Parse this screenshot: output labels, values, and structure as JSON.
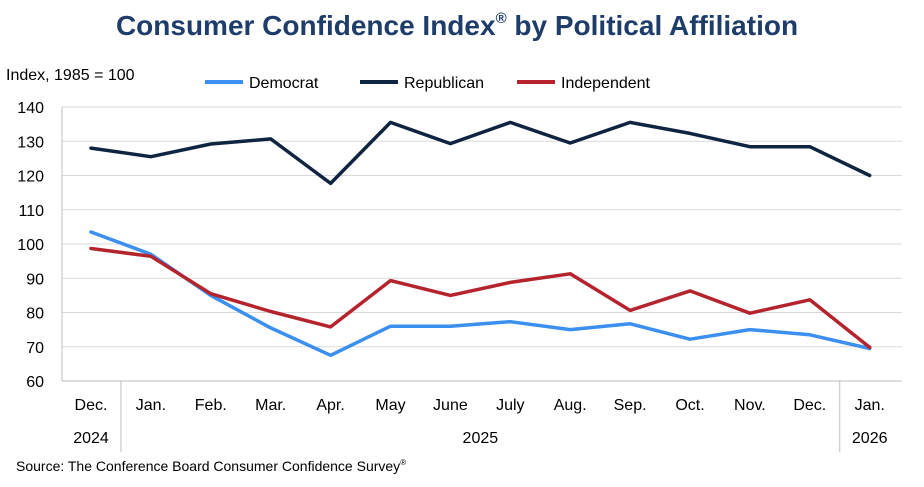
{
  "chart_data": {
    "type": "line",
    "title": "Consumer Confidence Index",
    "title_mark": "®",
    "title_suffix": "by Political Affiliation",
    "ylabel": "Index, 1985 = 100",
    "ylim": [
      60,
      140
    ],
    "yticks": [
      60,
      70,
      80,
      90,
      100,
      110,
      120,
      130,
      140
    ],
    "grid": true,
    "legend_position": "top",
    "categories": [
      "Dec.",
      "Jan.",
      "Feb.",
      "Mar.",
      "Apr.",
      "May",
      "June",
      "July",
      "Aug.",
      "Sep.",
      "Oct.",
      "Nov.",
      "Dec.",
      "Jan."
    ],
    "year_labels": [
      {
        "label": "2024",
        "start": 0,
        "end": 0
      },
      {
        "label": "2025",
        "start": 1,
        "end": 12
      },
      {
        "label": "2026",
        "start": 13,
        "end": 13
      }
    ],
    "series": [
      {
        "name": "Democrat",
        "color": "#3b8ff0",
        "values": [
          103.5,
          97,
          85,
          75.5,
          67.5,
          76,
          76,
          77.3,
          75,
          76.7,
          72.2,
          75,
          73.5,
          69.5
        ]
      },
      {
        "name": "Republican",
        "color": "#0f2440",
        "values": [
          128,
          125.5,
          129.2,
          130.7,
          117.7,
          135.5,
          129.3,
          135.5,
          129.5,
          135.5,
          132.3,
          128.4,
          128.4,
          120
        ]
      },
      {
        "name": "Independent",
        "color": "#b5232d",
        "values": [
          98.7,
          96.4,
          85.5,
          80.3,
          75.8,
          89.3,
          85,
          88.8,
          91.3,
          80.6,
          86.3,
          79.8,
          83.7,
          69.8
        ]
      }
    ]
  },
  "footer": {
    "source": "Source: The Conference Board Consumer Confidence Survey",
    "source_mark": "®"
  }
}
